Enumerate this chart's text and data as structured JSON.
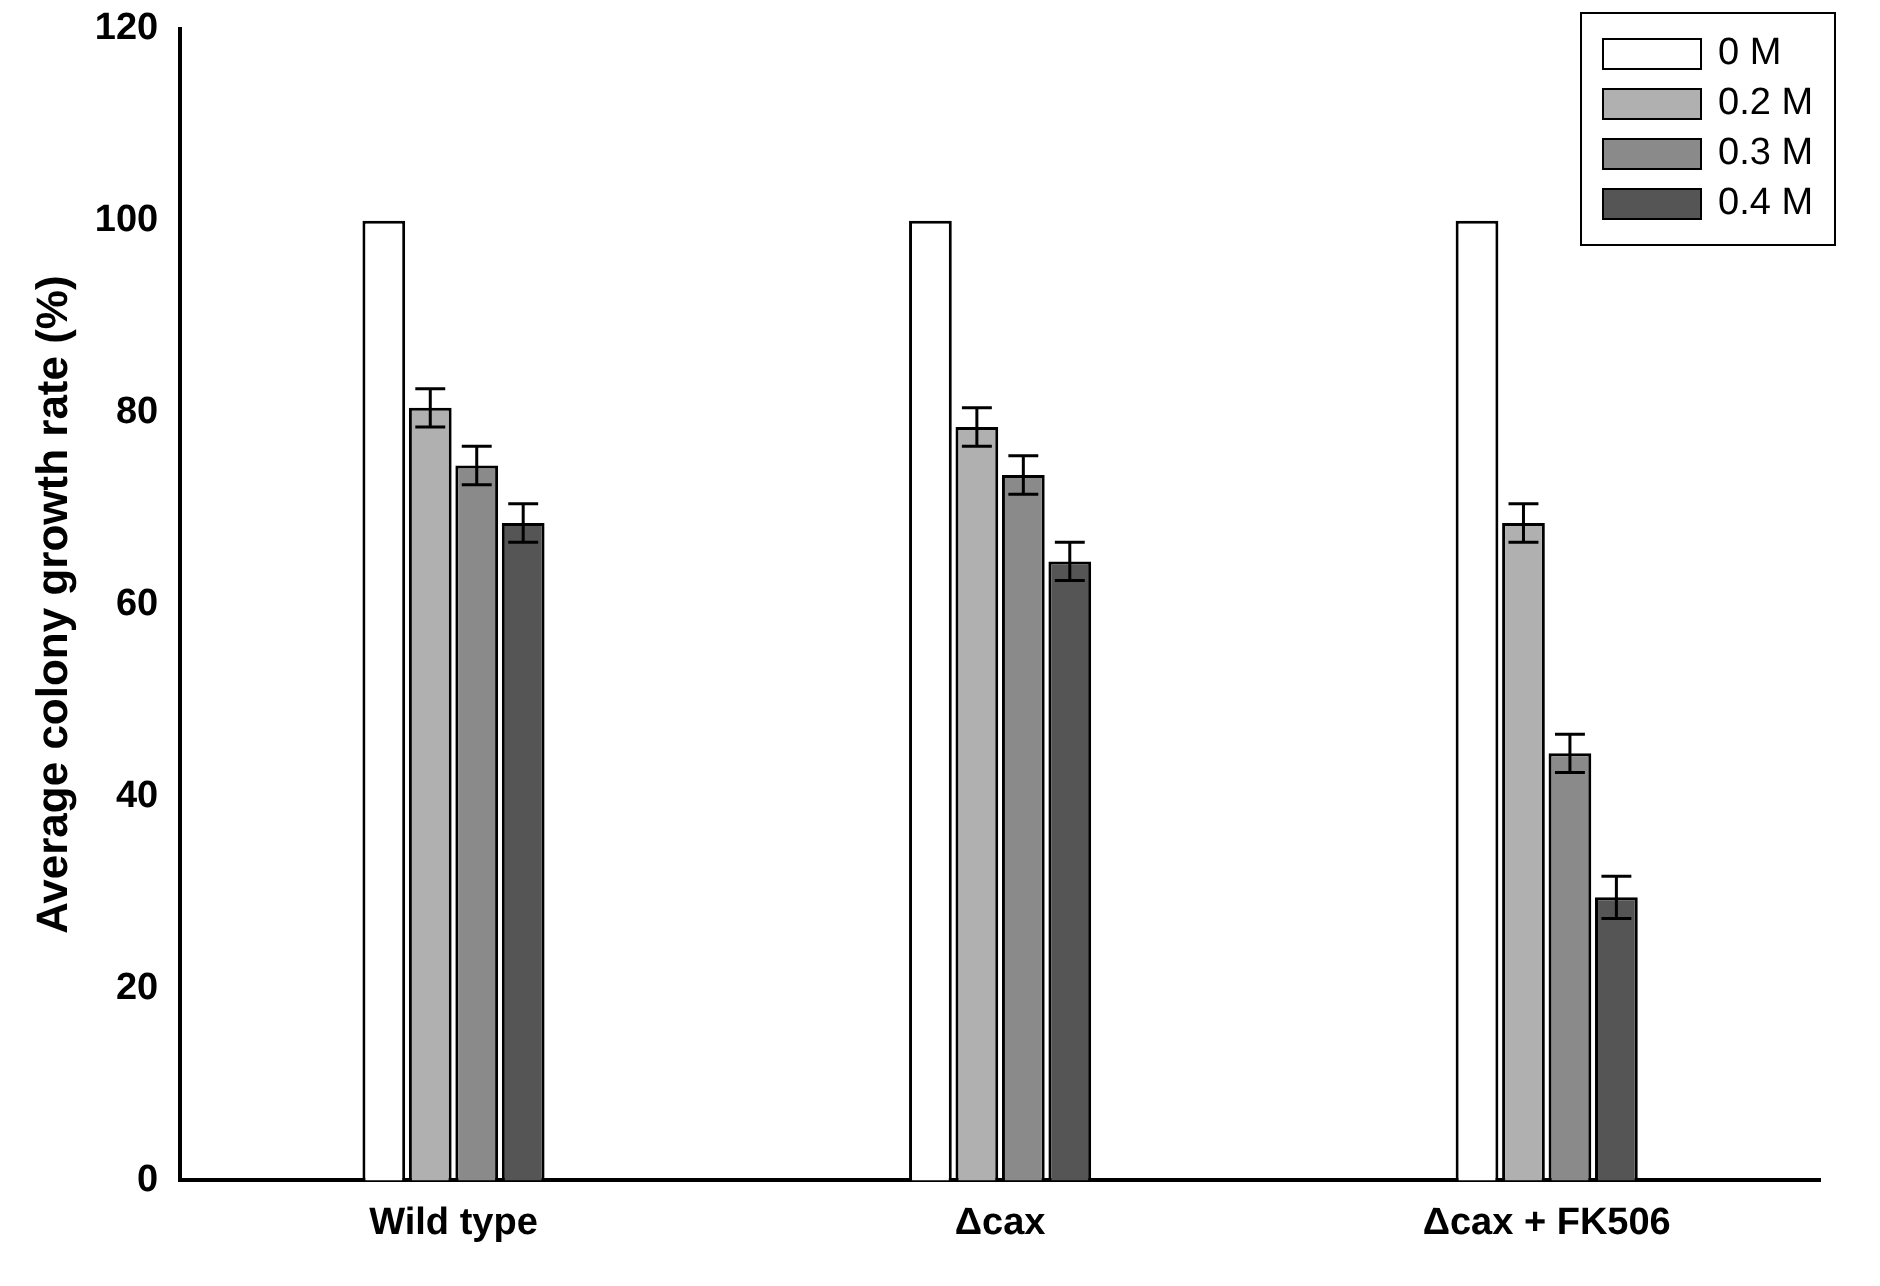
{
  "chart_data": {
    "type": "bar",
    "ylabel": "Average colony growth rate (%)",
    "categories": [
      "Wild type",
      "Δcax",
      "Δcax + FK506"
    ],
    "series": [
      {
        "name": "0 M",
        "color": "#ffffff",
        "values": [
          100,
          100,
          100
        ]
      },
      {
        "name": "0.2 M",
        "color": "#b0b0b0",
        "values": [
          80.5,
          78.5,
          68.5
        ],
        "errors": [
          2,
          2,
          2
        ]
      },
      {
        "name": "0.3 M",
        "color": "#8a8a8a",
        "values": [
          74.5,
          73.5,
          44.5
        ],
        "errors": [
          2,
          2,
          2
        ]
      },
      {
        "name": "0.4 M",
        "color": "#555555",
        "values": [
          68.5,
          64.5,
          29.5
        ],
        "errors": [
          2,
          2,
          2.2
        ]
      }
    ],
    "ylim": [
      0,
      120
    ],
    "yticks": [
      0,
      20,
      40,
      60,
      80,
      100,
      120
    ],
    "grid": false,
    "legend": "top right"
  }
}
